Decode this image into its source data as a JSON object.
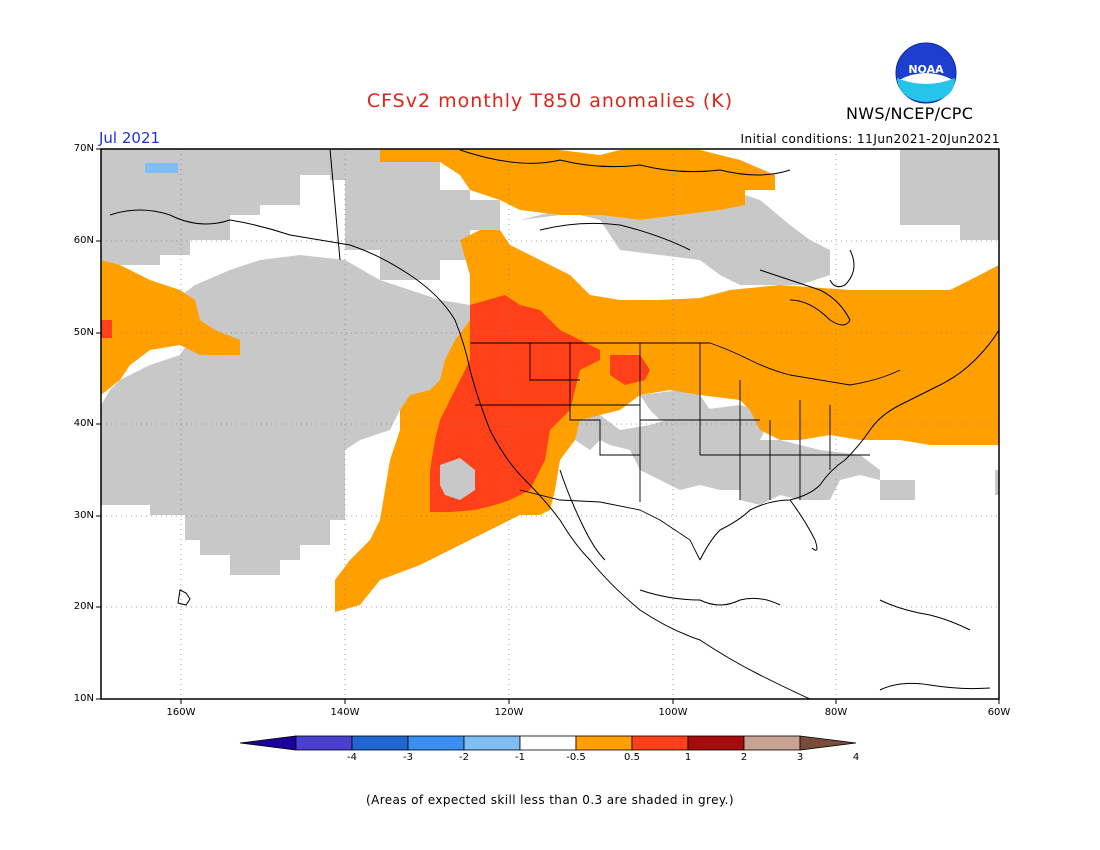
{
  "header": {
    "title": "CFSv2 monthly T850 anomalies (K)",
    "month": "Jul 2021",
    "initial_conditions": "Initial conditions: 11Jun2021-20Jun2021",
    "agency": "NWS/NCEP/CPC",
    "logo_text": "NOAA"
  },
  "axes": {
    "y_ticks": [
      "70N",
      "60N",
      "50N",
      "40N",
      "30N",
      "20N",
      "10N"
    ],
    "x_ticks": [
      "160W",
      "140W",
      "120W",
      "100W",
      "80W",
      "60W"
    ]
  },
  "colorbar": {
    "labels": [
      "-4",
      "-3",
      "-2",
      "-1",
      "-0.5",
      "0.5",
      "1",
      "2",
      "3",
      "4"
    ],
    "colors": [
      "#1a0099",
      "#4a3fcf",
      "#1f66cf",
      "#3b8ff0",
      "#80bdf5",
      "#ffffff",
      "#ff9f00",
      "#ff4018",
      "#a80b0b",
      "#c8a394",
      "#7a4a3a"
    ]
  },
  "map_colors": {
    "grey": "#c8c8c8",
    "orange": "#ff9f00",
    "red": "#ff4018",
    "lightblue": "#80bdf5"
  },
  "footnote": "(Areas of expected skill less than 0.3 are shaded in grey.)"
}
